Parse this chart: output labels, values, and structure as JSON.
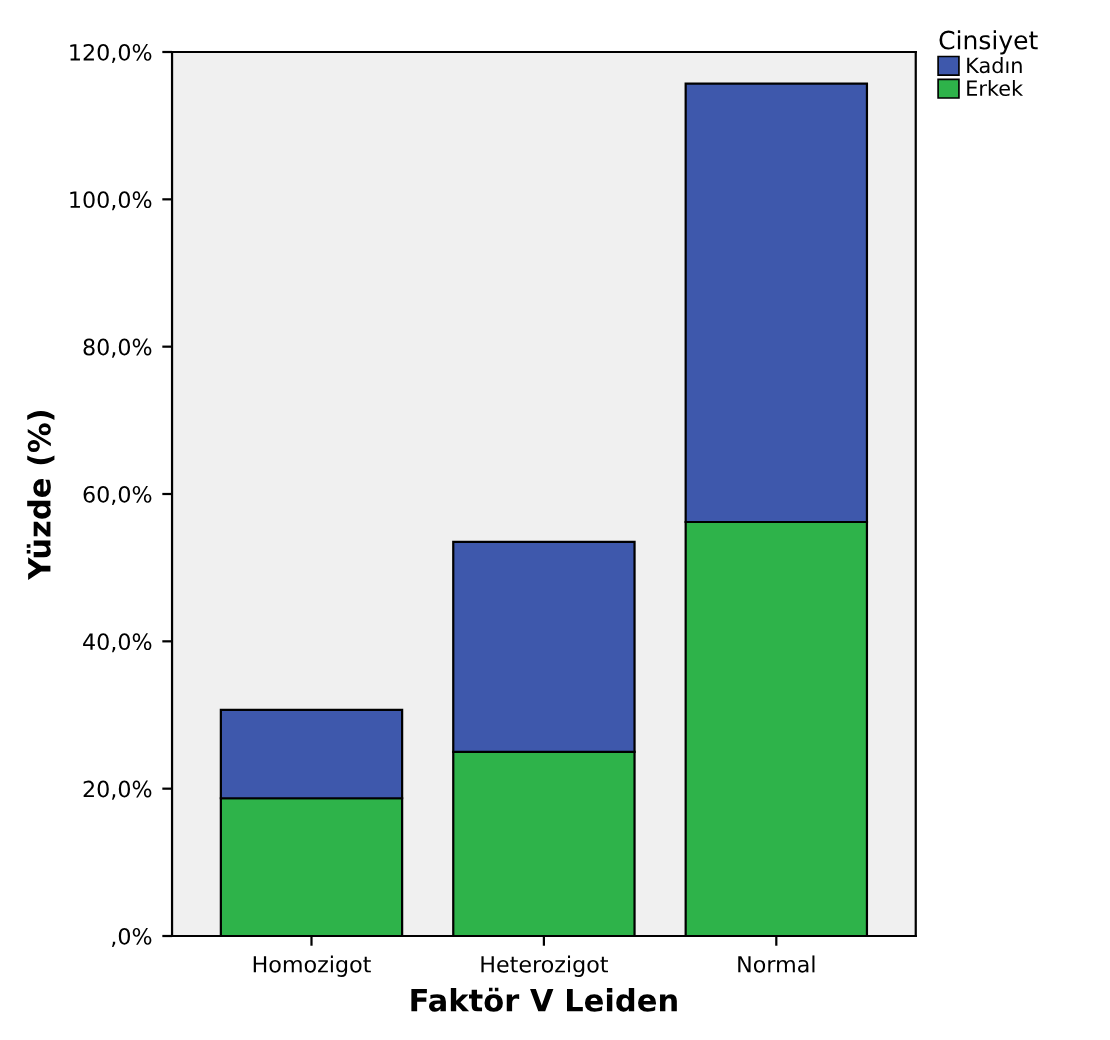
{
  "chart_data": {
    "type": "bar",
    "stacked": true,
    "xlabel": "Faktör V Leiden",
    "ylabel": "Yüzde (%)",
    "legend_title": "Cinsiyet",
    "legend": "top right",
    "categories": [
      "Homozigot",
      "Heterozigot",
      "Normal"
    ],
    "series": [
      {
        "name": "Erkek",
        "color": "#2eb34a",
        "values": [
          18.7,
          25.0,
          56.2
        ]
      },
      {
        "name": "Kadın",
        "color": "#3e58ac",
        "values": [
          12.0,
          28.5,
          59.5
        ]
      }
    ],
    "ylim": [
      0,
      120
    ],
    "yticks": [
      {
        "value": 0,
        "label": ",0%"
      },
      {
        "value": 20,
        "label": "20,0%"
      },
      {
        "value": 40,
        "label": "40,0%"
      },
      {
        "value": 60,
        "label": "60,0%"
      },
      {
        "value": 80,
        "label": "80,0%"
      },
      {
        "value": 100,
        "label": "100,0%"
      },
      {
        "value": 120,
        "label": "120,0%"
      }
    ],
    "grid": false
  }
}
